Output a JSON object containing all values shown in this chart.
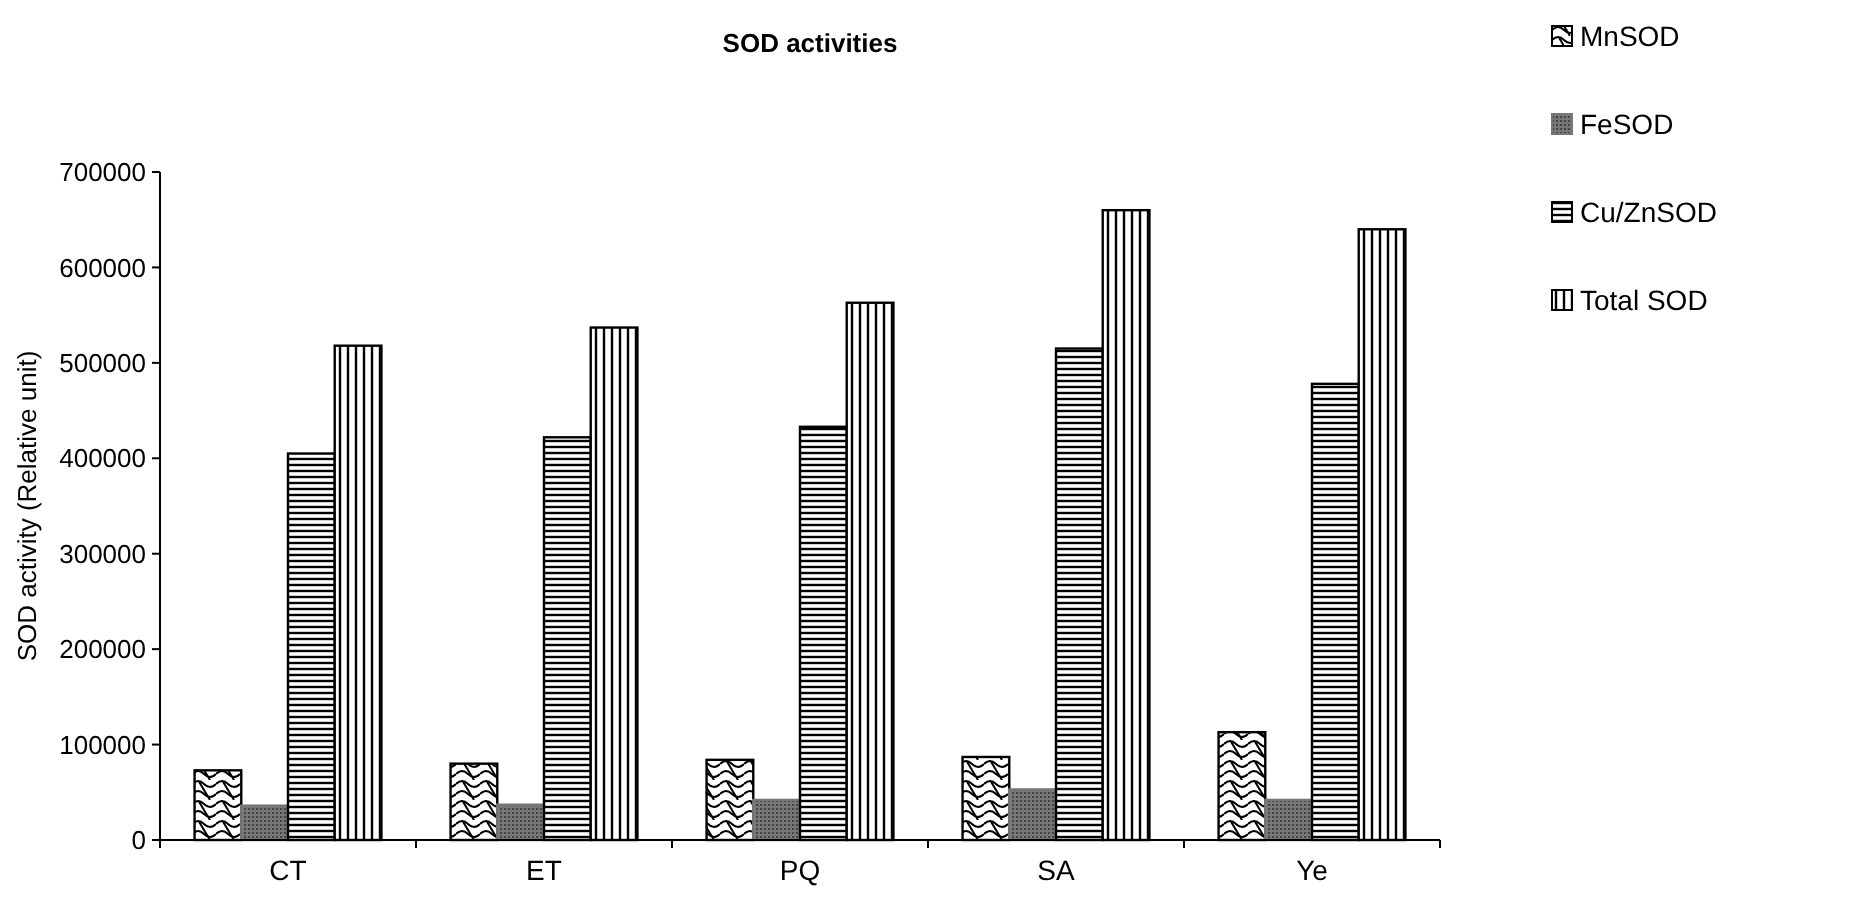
{
  "chart_data": {
    "type": "bar",
    "title": "SOD activities",
    "ylabel": "SOD activity (Relative unit)",
    "categories": [
      "CT",
      "ET",
      "PQ",
      "SA",
      "Ye"
    ],
    "series": [
      {
        "name": "MnSOD",
        "color": "#000000",
        "values": [
          73000,
          80000,
          84000,
          87000,
          113000
        ]
      },
      {
        "name": "FeSOD",
        "color": "#777777",
        "values": [
          36000,
          37000,
          42000,
          53000,
          42000
        ]
      },
      {
        "name": "Cu/ZnSOD",
        "color": "#000000",
        "values": [
          405000,
          422000,
          433000,
          515000,
          478000
        ]
      },
      {
        "name": "Total SOD",
        "color": "#000000",
        "values": [
          518000,
          537000,
          563000,
          660000,
          640000
        ]
      }
    ],
    "ylim": [
      0,
      700000
    ],
    "yticks": [
      0,
      100000,
      200000,
      300000,
      400000,
      500000,
      600000,
      700000
    ],
    "grid": false,
    "legend": "right"
  }
}
